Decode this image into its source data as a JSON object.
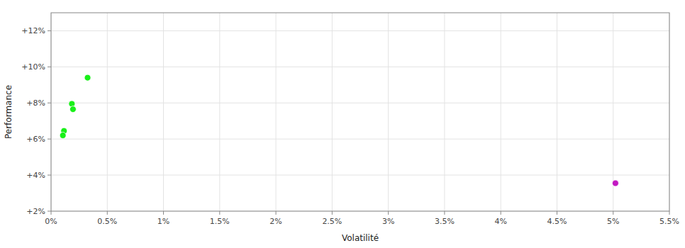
{
  "chart_data": {
    "type": "scatter",
    "xlabel": "Volatilité",
    "ylabel": "Performance",
    "xlim": [
      0.0,
      0.055
    ],
    "ylim": [
      0.02,
      0.13
    ],
    "xticks": [
      {
        "value": 0.0,
        "label": "0%"
      },
      {
        "value": 0.005,
        "label": "0.5%"
      },
      {
        "value": 0.01,
        "label": "1%"
      },
      {
        "value": 0.015,
        "label": "1.5%"
      },
      {
        "value": 0.02,
        "label": "2%"
      },
      {
        "value": 0.025,
        "label": "2.5%"
      },
      {
        "value": 0.03,
        "label": "3%"
      },
      {
        "value": 0.035,
        "label": "3.5%"
      },
      {
        "value": 0.04,
        "label": "4%"
      },
      {
        "value": 0.045,
        "label": "4.5%"
      },
      {
        "value": 0.05,
        "label": "5%"
      },
      {
        "value": 0.055,
        "label": "5.5%"
      }
    ],
    "yticks": [
      {
        "value": 0.02,
        "label": "+2%"
      },
      {
        "value": 0.04,
        "label": "+4%"
      },
      {
        "value": 0.06,
        "label": "+6%"
      },
      {
        "value": 0.08,
        "label": "+8%"
      },
      {
        "value": 0.1,
        "label": "+10%"
      },
      {
        "value": 0.12,
        "label": "+12%"
      }
    ],
    "grid": true,
    "series": [
      {
        "color": "#00ee00",
        "x": [
          0.00325,
          0.00185,
          0.00195,
          0.00115,
          0.00105
        ],
        "values": [
          0.094,
          0.0795,
          0.0765,
          0.0645,
          0.062
        ]
      },
      {
        "color": "#bb00bb",
        "x": [
          0.0502
        ],
        "values": [
          0.0355
        ]
      }
    ]
  }
}
